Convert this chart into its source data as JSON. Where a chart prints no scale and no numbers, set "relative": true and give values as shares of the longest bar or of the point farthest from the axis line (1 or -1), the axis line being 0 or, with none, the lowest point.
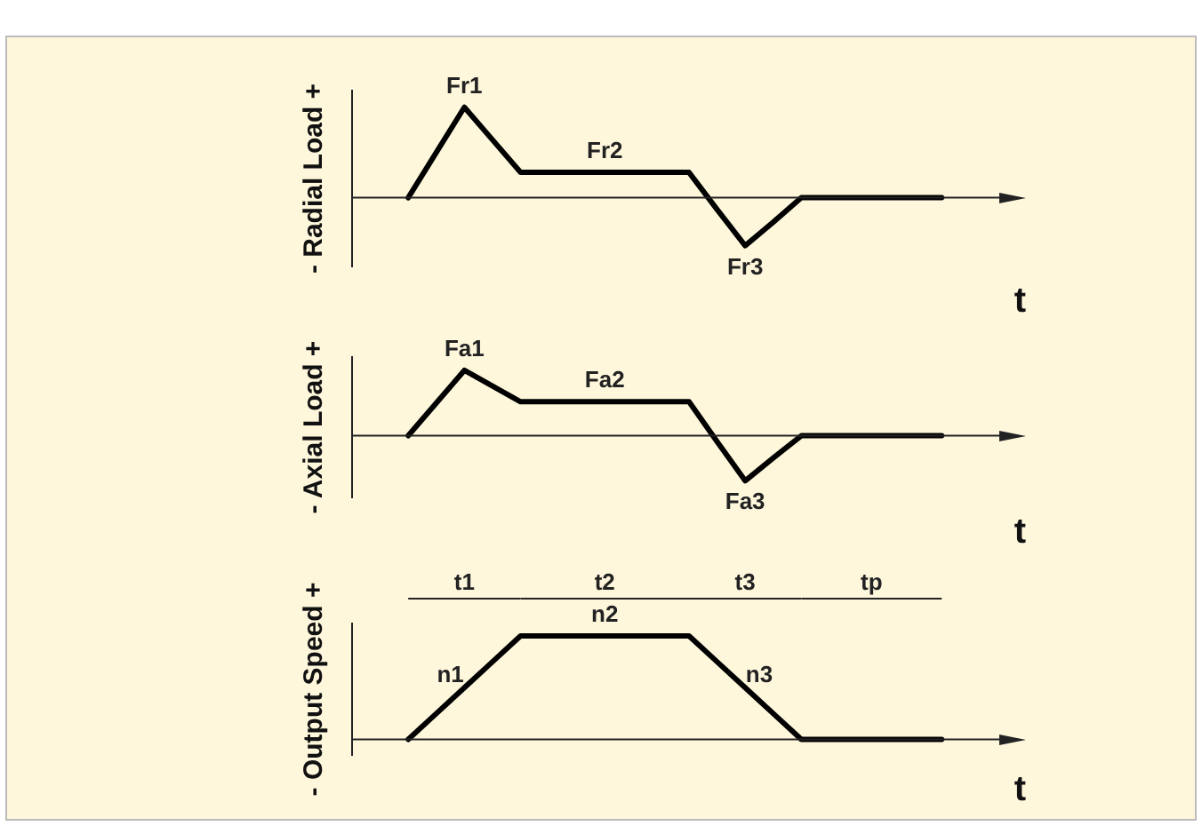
{
  "chart_data": [
    {
      "type": "line",
      "relative": true,
      "ylabel": "- Radial Load +",
      "xlabel": "t",
      "categories": [
        null,
        null,
        null,
        null,
        null,
        null,
        null,
        null,
        null,
        null,
        null,
        null,
        null,
        null,
        null,
        null,
        null,
        null,
        null,
        null,
        null,
        null,
        null,
        null,
        null
      ],
      "series": [
        {
          "color": "#000000",
          "values": [
            null,
            null,
            0,
            0.5,
            1,
            0.64,
            0.28,
            0.28,
            0.28,
            0.28,
            0.28,
            0.28,
            0.28,
            -0.13,
            -0.53,
            -0.27,
            0,
            0,
            0,
            0,
            0,
            0,
            null,
            null,
            null
          ]
        }
      ],
      "annotations": [
        "Fr1",
        "Fr2",
        "Fr3"
      ]
    },
    {
      "type": "line",
      "relative": true,
      "ylabel": "- Axial Load +",
      "xlabel": "t",
      "categories": [
        null,
        null,
        null,
        null,
        null,
        null,
        null,
        null,
        null,
        null,
        null,
        null,
        null,
        null,
        null,
        null,
        null,
        null,
        null,
        null,
        null,
        null,
        null,
        null,
        null
      ],
      "series": [
        {
          "color": "#000000",
          "values": [
            null,
            null,
            0,
            0.5,
            1,
            0.76,
            0.52,
            0.52,
            0.52,
            0.52,
            0.52,
            0.52,
            0.52,
            -0.09,
            -0.69,
            -0.34,
            0,
            0,
            0,
            0,
            0,
            0,
            null,
            null,
            null
          ]
        }
      ],
      "annotations": [
        "Fa1",
        "Fa2",
        "Fa3"
      ]
    },
    {
      "type": "line",
      "relative": true,
      "ylabel": "- Output Speed +",
      "xlabel": "t",
      "categories": [
        null,
        null,
        null,
        null,
        null,
        null,
        null,
        null,
        null,
        null,
        null,
        null,
        null,
        null,
        null,
        null,
        null,
        null,
        null,
        null,
        null,
        null,
        null,
        null,
        null
      ],
      "series": [
        {
          "color": "#000000",
          "values": [
            null,
            null,
            0,
            0.25,
            0.5,
            0.75,
            1,
            1,
            1,
            1,
            1,
            1,
            1,
            0.75,
            0.5,
            0.25,
            0,
            0,
            0,
            0,
            0,
            0,
            null,
            null,
            null
          ]
        }
      ],
      "annotations": [
        "n1",
        "n2",
        "n3",
        "t1",
        "t2",
        "t3",
        "tp"
      ]
    }
  ]
}
